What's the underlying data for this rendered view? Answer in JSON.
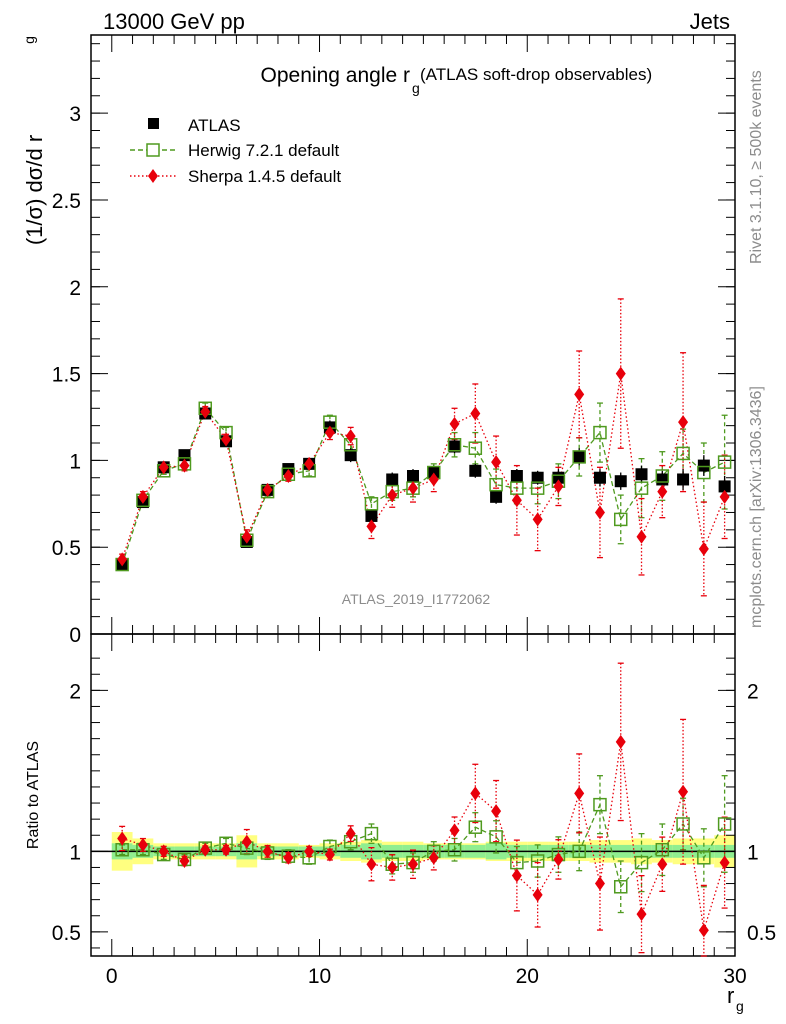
{
  "header": {
    "energy_label": "13000 GeV pp",
    "category_label": "Jets",
    "analysis_id": "ATLAS_2019_I1772062",
    "rivet_label": "Rivet 3.1.10, ≥ 500k events",
    "mcplots_label": "mcplots.cern.ch [arXiv:1306.3436]"
  },
  "chart_data": [
    {
      "type": "scatter",
      "title": "Opening angle r",
      "title_sub": "g",
      "title_suffix": " (ATLAS soft-drop observables)",
      "ylabel": "(1/σ) dσ/d r",
      "ylabel_sub": "g",
      "xlim": [
        -1,
        30
      ],
      "ylim": [
        0,
        3.45
      ],
      "yticks": [
        0,
        0.5,
        1,
        1.5,
        2,
        2.5,
        3
      ],
      "ytick_labels": [
        "0",
        "0.5",
        "1",
        "1.5",
        "2",
        "2.5",
        "3"
      ],
      "x": [
        0.5,
        1.5,
        2.5,
        3.5,
        4.5,
        5.5,
        6.5,
        7.5,
        8.5,
        9.5,
        10.5,
        11.5,
        12.5,
        13.5,
        14.5,
        15.5,
        16.5,
        17.5,
        18.5,
        19.5,
        20.5,
        21.5,
        22.5,
        23.5,
        24.5,
        25.5,
        26.5,
        27.5,
        28.5,
        29.5
      ],
      "series": [
        {
          "name": "ATLAS",
          "color": "#000000",
          "marker": "filled-square",
          "values": [
            0.4,
            0.76,
            0.96,
            1.03,
            1.27,
            1.11,
            0.53,
            0.83,
            0.95,
            0.98,
            1.19,
            1.03,
            0.68,
            0.89,
            0.91,
            0.93,
            1.08,
            0.94,
            0.79,
            0.91,
            0.9,
            0.9,
            1.02,
            0.9,
            0.88,
            0.92,
            0.89,
            0.89,
            0.97,
            0.85
          ],
          "errors": [
            0.02,
            0.03,
            0.03,
            0.03,
            0.03,
            0.03,
            0.03,
            0.03,
            0.03,
            0.03,
            0.04,
            0.04,
            0.04,
            0.04,
            0.04,
            0.04,
            0.04,
            0.04,
            0.04,
            0.04,
            0.04,
            0.05,
            0.05,
            0.05,
            0.05,
            0.05,
            0.05,
            0.06,
            0.06,
            0.06
          ]
        },
        {
          "name": "Herwig 7.2.1 default",
          "color": "#4f9a1f",
          "marker": "open-square",
          "line": "dashed",
          "values": [
            0.4,
            0.77,
            0.94,
            0.98,
            1.3,
            1.16,
            0.54,
            0.82,
            0.92,
            0.94,
            1.22,
            1.09,
            0.75,
            0.82,
            0.84,
            0.93,
            1.09,
            1.07,
            0.86,
            0.84,
            0.84,
            0.88,
            1.02,
            1.16,
            0.66,
            0.84,
            0.91,
            1.04,
            0.93,
            0.99
          ],
          "errors": [
            0.02,
            0.02,
            0.02,
            0.02,
            0.03,
            0.03,
            0.02,
            0.03,
            0.03,
            0.03,
            0.04,
            0.04,
            0.04,
            0.05,
            0.05,
            0.05,
            0.07,
            0.09,
            0.09,
            0.09,
            0.09,
            0.1,
            0.11,
            0.17,
            0.14,
            0.17,
            0.14,
            0.14,
            0.17,
            0.27
          ]
        },
        {
          "name": "Sherpa 1.4.5 default",
          "color": "#e8000b",
          "marker": "filled-diamond",
          "line": "dotted",
          "values": [
            0.43,
            0.79,
            0.96,
            0.97,
            1.28,
            1.12,
            0.56,
            0.83,
            0.91,
            0.98,
            1.16,
            1.14,
            0.62,
            0.8,
            0.84,
            0.89,
            1.21,
            1.27,
            0.99,
            0.77,
            0.66,
            0.85,
            1.38,
            0.7,
            1.5,
            0.56,
            0.82,
            1.22,
            0.49,
            0.79
          ]
        }
      ]
    },
    {
      "type": "scatter",
      "title": "",
      "ylabel": "Ratio to ATLAS",
      "xlabel": "r",
      "xlabel_sub": "g",
      "xlim": [
        -1,
        30
      ],
      "ylim": [
        0.35,
        2.35
      ],
      "xticks": [
        0,
        10,
        20,
        30
      ],
      "xtick_labels": [
        "0",
        "10",
        "20",
        "30"
      ],
      "yticks": [
        0.5,
        1,
        2
      ],
      "ytick_labels": [
        "0.5",
        "1",
        "2"
      ],
      "x": [
        0.5,
        1.5,
        2.5,
        3.5,
        4.5,
        5.5,
        6.5,
        7.5,
        8.5,
        9.5,
        10.5,
        11.5,
        12.5,
        13.5,
        14.5,
        15.5,
        16.5,
        17.5,
        18.5,
        19.5,
        20.5,
        21.5,
        22.5,
        23.5,
        24.5,
        25.5,
        26.5,
        27.5,
        28.5,
        29.5
      ],
      "series": [
        {
          "name": "Herwig 7.2.1 default",
          "color": "#4f9a1f",
          "marker": "open-square",
          "line": "dashed",
          "values": [
            1.01,
            1.01,
            0.98,
            0.95,
            1.02,
            1.05,
            1.02,
            0.99,
            0.97,
            0.96,
            1.03,
            1.06,
            1.11,
            0.92,
            0.93,
            1.0,
            1.01,
            1.15,
            1.09,
            0.93,
            0.94,
            0.98,
            1.0,
            1.29,
            0.78,
            0.93,
            1.01,
            1.17,
            0.96,
            1.17
          ],
          "errors": [
            0.03,
            0.03,
            0.03,
            0.03,
            0.03,
            0.03,
            0.04,
            0.04,
            0.04,
            0.04,
            0.04,
            0.05,
            0.06,
            0.06,
            0.06,
            0.06,
            0.07,
            0.09,
            0.1,
            0.1,
            0.1,
            0.11,
            0.12,
            0.18,
            0.16,
            0.18,
            0.16,
            0.16,
            0.18,
            0.3
          ]
        },
        {
          "name": "Sherpa 1.4.5 default",
          "color": "#e8000b",
          "marker": "filled-diamond",
          "line": "dotted",
          "values": [
            1.08,
            1.04,
            1.0,
            0.94,
            1.01,
            1.01,
            1.06,
            1.0,
            0.96,
            1.0,
            0.98,
            1.11,
            0.92,
            0.9,
            0.92,
            0.96,
            1.13,
            1.36,
            1.25,
            0.85,
            0.73,
            0.95,
            1.36,
            0.8,
            1.68,
            0.61,
            0.92,
            1.37,
            0.51,
            0.93
          ]
        },
        {
          "name": "ATLAS uncertainty (inner)",
          "color": "#90ee90",
          "band_half_width": [
            0.05,
            0.04,
            0.03,
            0.03,
            0.03,
            0.03,
            0.05,
            0.03,
            0.03,
            0.03,
            0.03,
            0.04,
            0.05,
            0.04,
            0.04,
            0.04,
            0.04,
            0.04,
            0.05,
            0.04,
            0.04,
            0.04,
            0.04,
            0.04,
            0.04,
            0.04,
            0.04,
            0.04,
            0.04,
            0.04
          ]
        },
        {
          "name": "ATLAS uncertainty (total)",
          "color": "#ffff80",
          "band_half_width": [
            0.12,
            0.08,
            0.05,
            0.05,
            0.05,
            0.05,
            0.1,
            0.05,
            0.05,
            0.04,
            0.05,
            0.06,
            0.07,
            0.06,
            0.06,
            0.05,
            0.05,
            0.05,
            0.06,
            0.06,
            0.06,
            0.06,
            0.06,
            0.07,
            0.07,
            0.08,
            0.07,
            0.08,
            0.08,
            0.1
          ]
        }
      ]
    }
  ]
}
